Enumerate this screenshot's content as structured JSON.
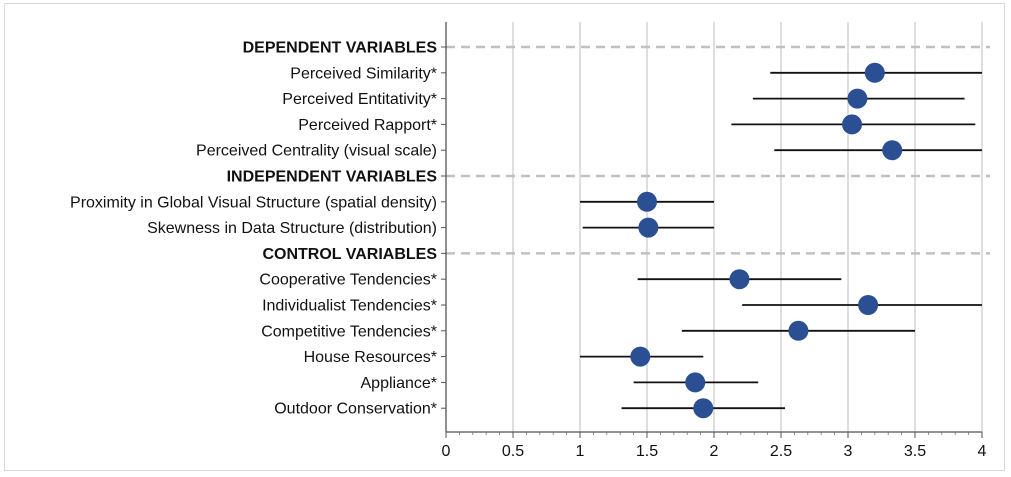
{
  "chart_data": {
    "type": "scatter",
    "subtype": "dot-with-error-bars",
    "title": "",
    "xlabel": "",
    "ylabel": "",
    "xlim": [
      0,
      4
    ],
    "xticks": [
      "0",
      "0.5",
      "1",
      "1.5",
      "2",
      "2.5",
      "3",
      "3.5",
      "4"
    ],
    "grid": true,
    "rows": [
      {
        "label": "DEPENDENT VARIABLES",
        "header": true
      },
      {
        "label": "Perceived Similarity*",
        "mean": 3.2,
        "low": 2.42,
        "high": 4.0
      },
      {
        "label": "Perceived Entitativity*",
        "mean": 3.07,
        "low": 2.29,
        "high": 3.87
      },
      {
        "label": "Perceived Rapport*",
        "mean": 3.03,
        "low": 2.13,
        "high": 3.95
      },
      {
        "label": "Perceived Centrality (visual scale)",
        "mean": 3.33,
        "low": 2.45,
        "high": 4.0
      },
      {
        "label": "INDEPENDENT VARIABLES",
        "header": true
      },
      {
        "label": "Proximity in Global Visual Structure (spatial density)",
        "mean": 1.5,
        "low": 1.0,
        "high": 2.0
      },
      {
        "label": "Skewness in Data Structure (distribution)",
        "mean": 1.51,
        "low": 1.02,
        "high": 2.0
      },
      {
        "label": "CONTROL VARIABLES",
        "header": true
      },
      {
        "label": "Cooperative Tendencies*",
        "mean": 2.19,
        "low": 1.43,
        "high": 2.95
      },
      {
        "label": "Individualist Tendencies*",
        "mean": 3.15,
        "low": 2.21,
        "high": 4.0
      },
      {
        "label": "Competitive Tendencies*",
        "mean": 2.63,
        "low": 1.76,
        "high": 3.5
      },
      {
        "label": "House Resources*",
        "mean": 1.45,
        "low": 1.0,
        "high": 1.92
      },
      {
        "label": "Appliance*",
        "mean": 1.86,
        "low": 1.4,
        "high": 2.33
      },
      {
        "label": "Outdoor Conservation*",
        "mean": 1.92,
        "low": 1.31,
        "high": 2.53
      }
    ],
    "colors": {
      "point": "#2b4f93",
      "bar": "#111111",
      "grid": "#c8c8c8",
      "separator": "#c0c0c0"
    }
  }
}
